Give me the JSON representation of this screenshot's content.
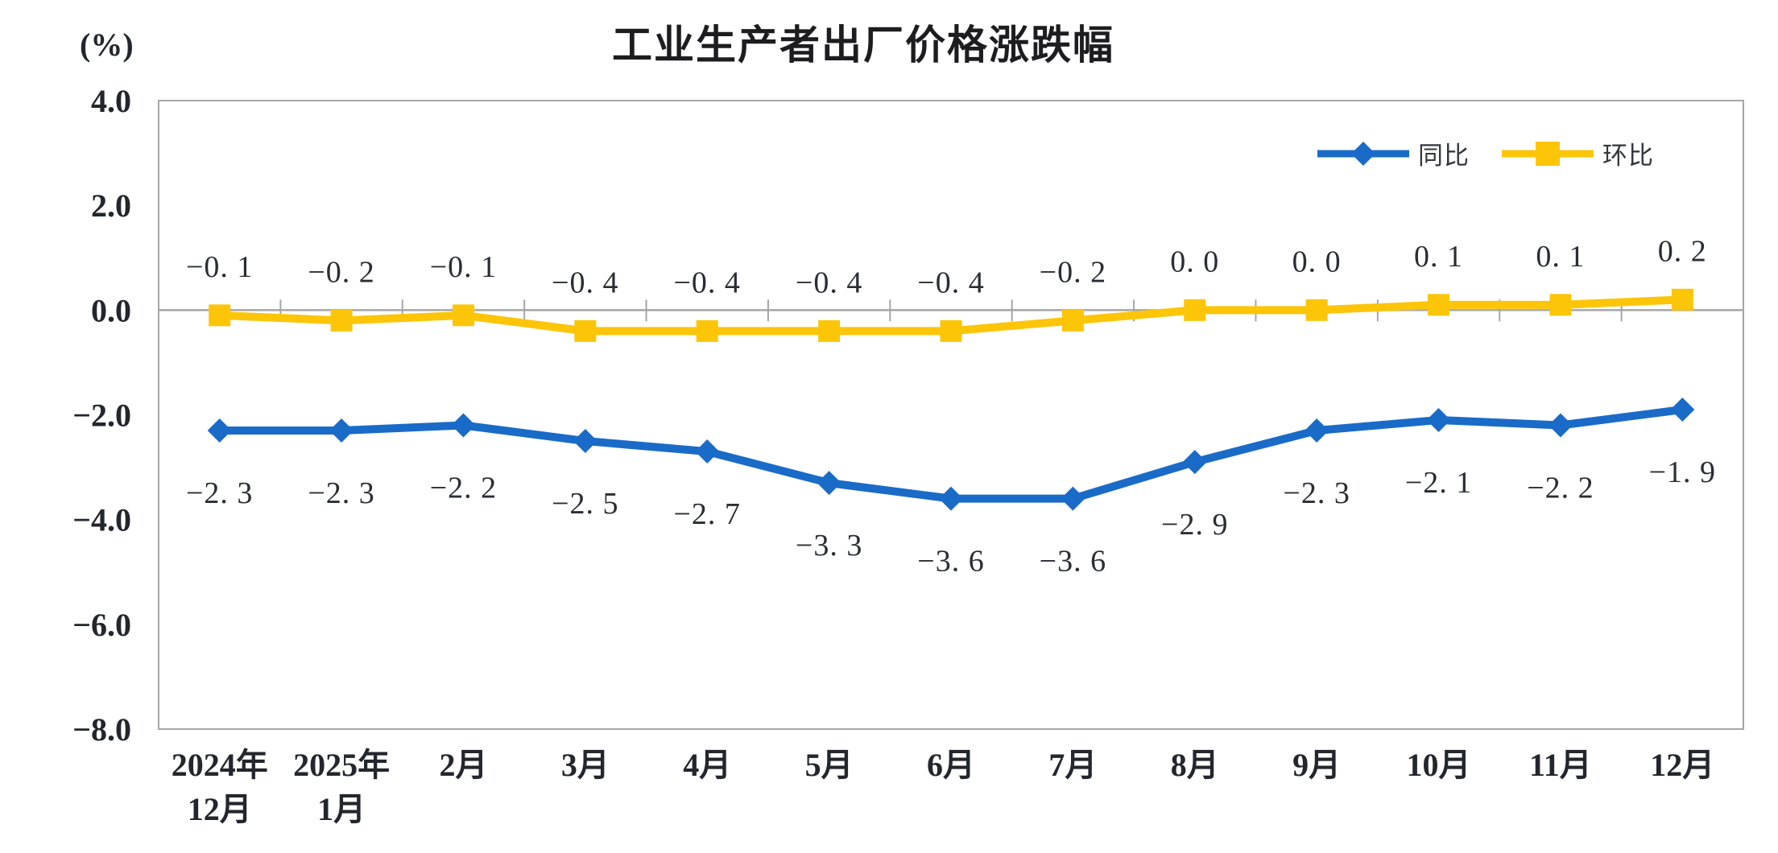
{
  "chart": {
    "title": "工业生产者出厂价格涨跌幅",
    "y_axis_unit": "(%)"
  },
  "chart_data": {
    "type": "line",
    "title": "工业生产者出厂价格涨跌幅",
    "y_unit": "(%)",
    "ylim": [
      -8.0,
      4.0
    ],
    "ytick_step": 2.0,
    "ytick_labels": [
      "4.0",
      "2.0",
      "0.0",
      "-2.0",
      "-4.0",
      "-6.0",
      "-8.0"
    ],
    "grid": false,
    "legend_position": "top-right-inside",
    "categories": [
      "2024年\n12月",
      "2025年\n1月",
      "2月",
      "3月",
      "4月",
      "5月",
      "6月",
      "7月",
      "8月",
      "9月",
      "10月",
      "11月",
      "12月"
    ],
    "series": [
      {
        "name": "同比",
        "color": "#1a6bc8",
        "marker": "diamond",
        "label_position": "below",
        "values": [
          -2.3,
          -2.3,
          -2.2,
          -2.5,
          -2.7,
          -3.3,
          -3.6,
          -3.6,
          -2.9,
          -2.3,
          -2.1,
          -2.2,
          -1.9
        ]
      },
      {
        "name": "环比",
        "color": "#fcc508",
        "marker": "square",
        "label_position": "above",
        "values": [
          -0.1,
          -0.2,
          -0.1,
          -0.4,
          -0.4,
          -0.4,
          -0.4,
          -0.2,
          0.0,
          0.0,
          0.1,
          0.1,
          0.2
        ]
      }
    ],
    "axis_color": "#a6a6a6",
    "text_color": "#23262d"
  }
}
